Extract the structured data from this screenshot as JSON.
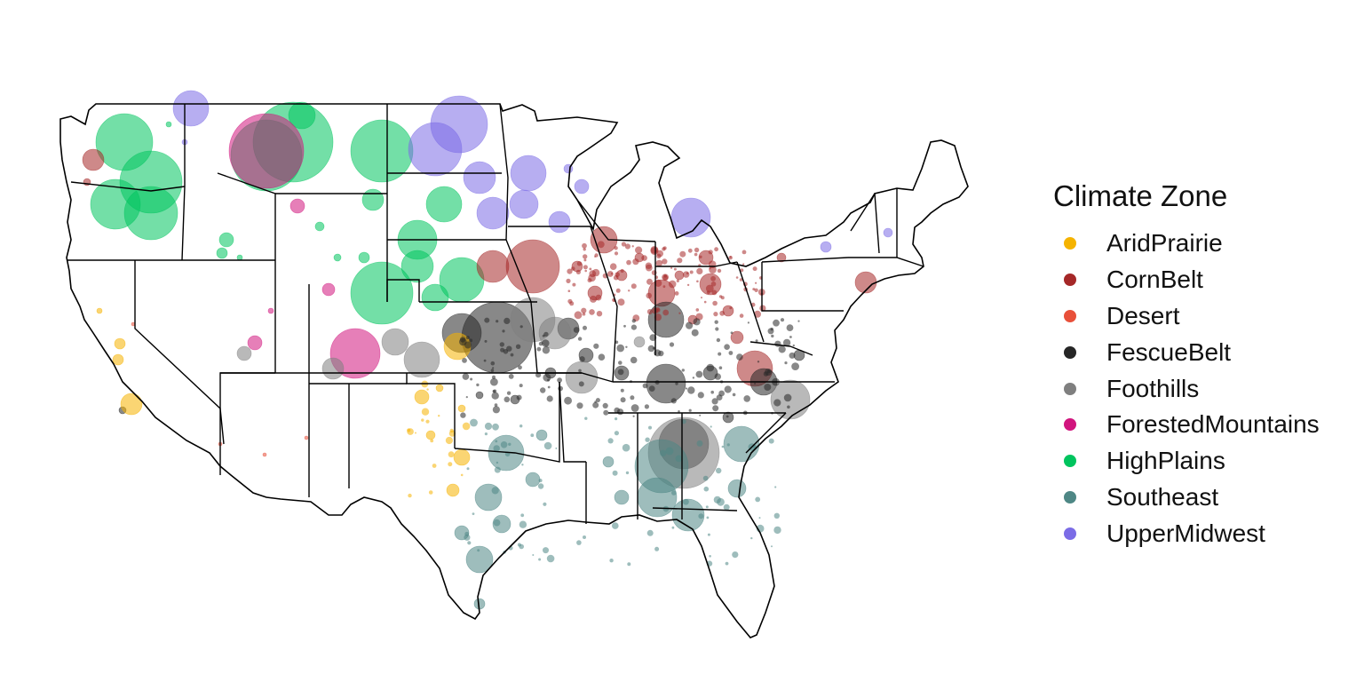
{
  "legend": {
    "title": "Climate Zone",
    "items": [
      {
        "label": "AridPrairie",
        "color": "#F5B300"
      },
      {
        "label": "CornBelt",
        "color": "#A52828"
      },
      {
        "label": "Desert",
        "color": "#E8503A"
      },
      {
        "label": "FescueBelt",
        "color": "#262626"
      },
      {
        "label": "Foothills",
        "color": "#7F7F7F"
      },
      {
        "label": "ForestedMountains",
        "color": "#D1157E"
      },
      {
        "label": "HighPlains",
        "color": "#00C45E"
      },
      {
        "label": "Southeast",
        "color": "#4E8785"
      },
      {
        "label": "UpperMidwest",
        "color": "#7B6CE6"
      }
    ]
  },
  "map": {
    "region": "Contiguous United States",
    "boundaries": "state outlines",
    "symbol": "semi-transparent proportional circles colored by climate zone"
  }
}
